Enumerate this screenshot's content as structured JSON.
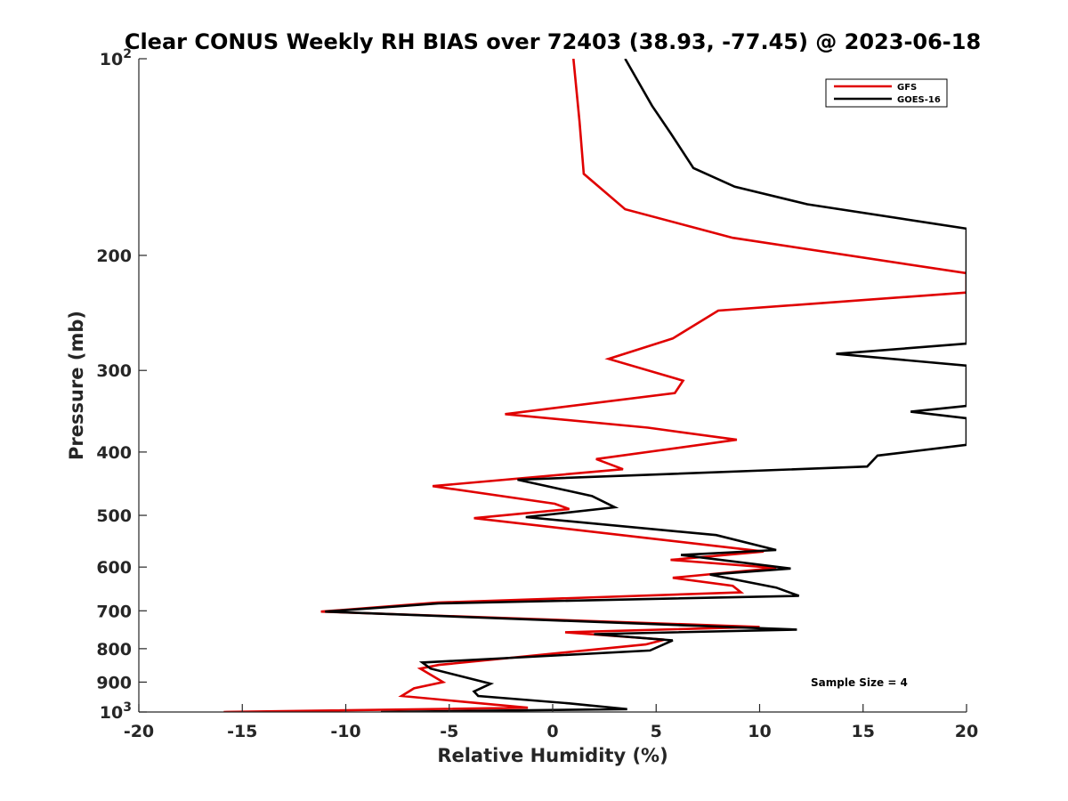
{
  "chart_data": {
    "type": "line",
    "title": "Clear CONUS Weekly RH BIAS over 72403 (38.93, -77.45) @ 2023-06-18",
    "xlabel": "Relative Humidity (%)",
    "ylabel": "Pressure (mb)",
    "xlim": [
      -20,
      20
    ],
    "ylim": [
      100,
      1000
    ],
    "yscale": "log",
    "y_reversed": true,
    "x_ticks": [
      -20,
      -15,
      -10,
      -5,
      0,
      5,
      10,
      15,
      20
    ],
    "x_tick_labels": [
      "-20",
      "-15",
      "-10",
      "-5",
      "0",
      "5",
      "10",
      "15",
      "20"
    ],
    "y_ticks": [
      100,
      200,
      300,
      400,
      500,
      600,
      700,
      800,
      900,
      1000
    ],
    "y_tick_labels": [
      "10^2",
      "200",
      "300",
      "400",
      "500",
      "600",
      "700",
      "800",
      "900",
      "10^3"
    ],
    "grid": false,
    "legend_position": "top-right",
    "annotation": "Sample Size = 4",
    "series": [
      {
        "name": "GFS",
        "color": "#e00000",
        "points": [
          [
            1.0,
            100
          ],
          [
            1.3,
            125
          ],
          [
            1.5,
            150
          ],
          [
            3.5,
            170
          ],
          [
            8.7,
            188
          ],
          [
            20,
            213
          ],
          [
            20,
            228
          ],
          [
            8.0,
            243
          ],
          [
            5.8,
            268
          ],
          [
            2.7,
            288
          ],
          [
            6.3,
            311
          ],
          [
            5.9,
            325
          ],
          [
            -2.3,
            350
          ],
          [
            4.6,
            367
          ],
          [
            8.9,
            383
          ],
          [
            2.1,
            410
          ],
          [
            3.4,
            425
          ],
          [
            -5.8,
            451
          ],
          [
            0.1,
            480
          ],
          [
            0.8,
            489
          ],
          [
            -3.8,
            505
          ],
          [
            5.5,
            546
          ],
          [
            10.2,
            568
          ],
          [
            5.7,
            585
          ],
          [
            10.8,
            602
          ],
          [
            5.8,
            623
          ],
          [
            8.7,
            641
          ],
          [
            9.1,
            656
          ],
          [
            -5.6,
            680
          ],
          [
            -11.2,
            702
          ],
          [
            10.0,
            741
          ],
          [
            0.6,
            755
          ],
          [
            5.4,
            775
          ],
          [
            4.5,
            788
          ],
          [
            -5.5,
            847
          ],
          [
            -6.4,
            858
          ],
          [
            -5.3,
            900
          ],
          [
            -6.7,
            920
          ],
          [
            -7.3,
            945
          ],
          [
            -1.2,
            985
          ],
          [
            -15.9,
            1000
          ]
        ]
      },
      {
        "name": "GOES-16",
        "color": "#000000",
        "points": [
          [
            3.5,
            100
          ],
          [
            4.8,
            118
          ],
          [
            5.7,
            130
          ],
          [
            6.8,
            147
          ],
          [
            8.8,
            157
          ],
          [
            12.3,
            167
          ],
          [
            20,
            182
          ],
          [
            20,
            273
          ],
          [
            13.7,
            283
          ],
          [
            20,
            295
          ],
          [
            20,
            340
          ],
          [
            17.3,
            347
          ],
          [
            20,
            355
          ],
          [
            20,
            390
          ],
          [
            15.7,
            405
          ],
          [
            15.2,
            421
          ],
          [
            -1.7,
            441
          ],
          [
            1.9,
            467
          ],
          [
            3.0,
            486
          ],
          [
            -1.3,
            503
          ],
          [
            7.9,
            536
          ],
          [
            10.8,
            565
          ],
          [
            6.2,
            575
          ],
          [
            11.5,
            603
          ],
          [
            7.6,
            616
          ],
          [
            10.8,
            645
          ],
          [
            11.9,
            664
          ],
          [
            -5.5,
            682
          ],
          [
            -11.0,
            702
          ],
          [
            11.8,
            748
          ],
          [
            2.0,
            760
          ],
          [
            5.8,
            777
          ],
          [
            4.7,
            805
          ],
          [
            -6.3,
            840
          ],
          [
            -5.9,
            858
          ],
          [
            -3.0,
            905
          ],
          [
            -3.8,
            930
          ],
          [
            -3.6,
            945
          ],
          [
            0.8,
            970
          ],
          [
            3.6,
            990
          ],
          [
            -8.3,
            1000
          ]
        ]
      }
    ]
  }
}
